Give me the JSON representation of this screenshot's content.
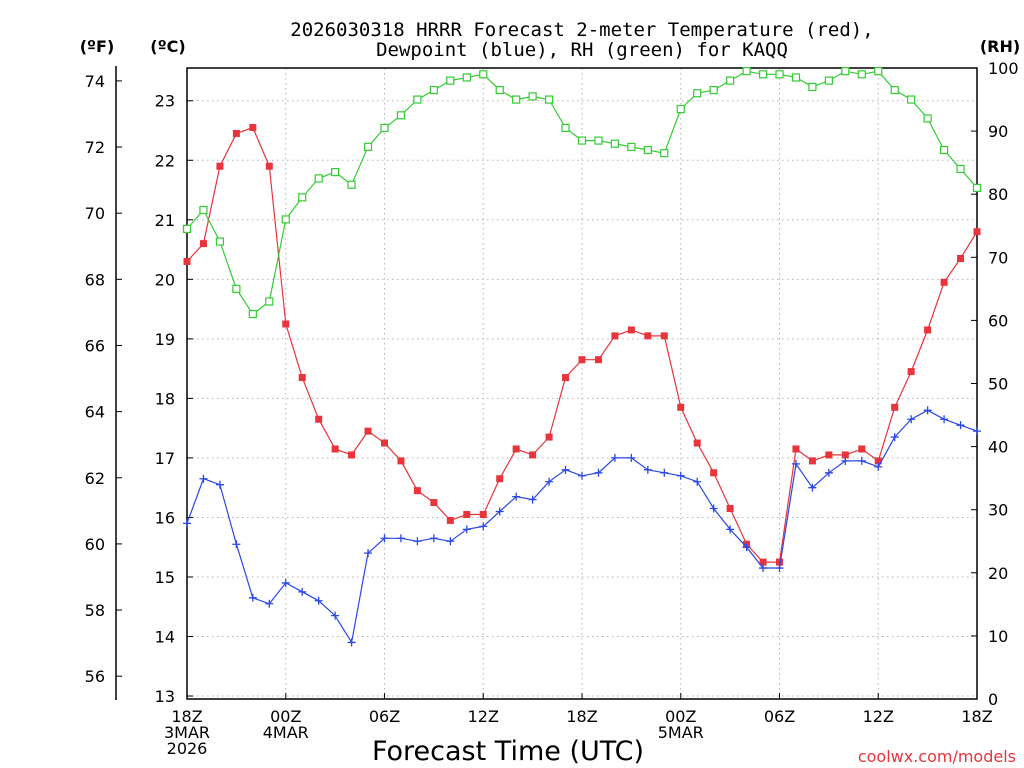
{
  "chart_data": {
    "type": "line",
    "title_line1": "2026030318 HRRR Forecast 2-meter Temperature (red),",
    "title_line2": "Dewpoint (blue), RH (green) for KAQQ",
    "xlabel": "Forecast Time (UTC)",
    "watermark": "coolwx.com/models",
    "unit_labels": {
      "fahrenheit": "(ºF)",
      "celsius": "(ºC)",
      "rh": "(RH)"
    },
    "x_range_hours": [
      0,
      48
    ],
    "x_ticks": [
      {
        "hour": 0,
        "lines": [
          "18Z",
          "3MAR",
          "2026"
        ]
      },
      {
        "hour": 6,
        "lines": [
          "00Z",
          "4MAR"
        ]
      },
      {
        "hour": 12,
        "lines": [
          "06Z"
        ]
      },
      {
        "hour": 18,
        "lines": [
          "12Z"
        ]
      },
      {
        "hour": 24,
        "lines": [
          "18Z"
        ]
      },
      {
        "hour": 30,
        "lines": [
          "00Z",
          "5MAR"
        ]
      },
      {
        "hour": 36,
        "lines": [
          "06Z"
        ]
      },
      {
        "hour": 42,
        "lines": [
          "12Z"
        ]
      },
      {
        "hour": 48,
        "lines": [
          "18Z"
        ]
      }
    ],
    "y_left_celsius": {
      "range": [
        12.95,
        23.55
      ],
      "ticks": [
        "13",
        "14",
        "15",
        "16",
        "17",
        "18",
        "19",
        "20",
        "21",
        "22",
        "23"
      ]
    },
    "y_left_fahrenheit": {
      "ticks": [
        "56",
        "58",
        "60",
        "62",
        "64",
        "66",
        "68",
        "70",
        "72",
        "74"
      ]
    },
    "y_right_rh": {
      "range": [
        0,
        100
      ],
      "ticks": [
        "0",
        "10",
        "20",
        "30",
        "40",
        "50",
        "60",
        "70",
        "80",
        "90",
        "100"
      ]
    },
    "grid": true,
    "series": [
      {
        "name": "2-meter Temperature",
        "unit": "C",
        "color": "#e8343a",
        "marker": "filled-square",
        "values": [
          20.3,
          20.6,
          21.9,
          22.45,
          22.55,
          21.9,
          19.25,
          18.35,
          17.65,
          17.15,
          17.05,
          17.45,
          17.25,
          16.95,
          16.45,
          16.25,
          15.95,
          16.05,
          16.05,
          16.65,
          17.15,
          17.05,
          17.35,
          18.35,
          18.65,
          18.65,
          19.05,
          19.15,
          19.05,
          19.05,
          17.85,
          17.25,
          16.75,
          16.15,
          15.55,
          15.25,
          15.25,
          17.15,
          16.95,
          17.05,
          17.05,
          17.15,
          16.95,
          17.85,
          18.45,
          19.15,
          19.95,
          20.35,
          20.8
        ]
      },
      {
        "name": "Dewpoint",
        "unit": "C",
        "color": "#2a48e6",
        "marker": "plus",
        "values": [
          15.9,
          16.65,
          16.55,
          15.55,
          14.65,
          14.55,
          14.9,
          14.75,
          14.6,
          14.35,
          13.9,
          15.4,
          15.65,
          15.65,
          15.6,
          15.65,
          15.6,
          15.8,
          15.85,
          16.1,
          16.35,
          16.3,
          16.6,
          16.8,
          16.7,
          16.75,
          17.0,
          17.0,
          16.8,
          16.75,
          16.7,
          16.6,
          16.15,
          15.8,
          15.5,
          15.15,
          15.15,
          16.9,
          16.5,
          16.75,
          16.95,
          16.95,
          16.85,
          17.35,
          17.65,
          17.8,
          17.65,
          17.55,
          17.45
        ]
      },
      {
        "name": "Relative Humidity",
        "unit": "%",
        "color": "#33cc33",
        "marker": "open-square",
        "values": [
          74.5,
          77.5,
          72.5,
          65,
          61,
          63,
          76,
          79.5,
          82.5,
          83.5,
          81.5,
          87.5,
          90.5,
          92.5,
          95,
          96.5,
          98,
          98.5,
          99,
          96.5,
          95,
          95.5,
          95,
          90.5,
          88.5,
          88.5,
          88,
          87.5,
          87,
          86.5,
          93.5,
          96,
          96.5,
          98,
          99.5,
          99,
          99,
          98.5,
          97,
          98,
          99.5,
          99,
          99.5,
          96.5,
          95,
          92,
          87,
          84,
          81
        ]
      }
    ]
  }
}
